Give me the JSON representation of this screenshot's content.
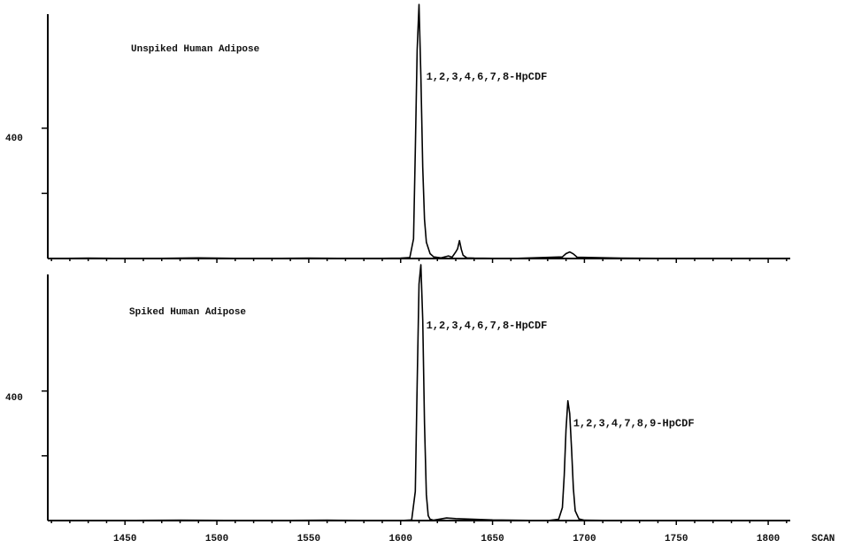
{
  "chart_data": {
    "type": "line",
    "x_label": "SCAN",
    "x_ticks": [
      1450,
      1500,
      1550,
      1600,
      1650,
      1700,
      1750,
      1800
    ],
    "xlim": [
      1408,
      1812
    ],
    "panels": [
      {
        "title": "Unspiked Human Adipose",
        "y_tick_label": "400",
        "ylim": [
          0,
          750
        ],
        "y_ticks": [
          200,
          400
        ],
        "series": [
          {
            "x": [
              1408,
              1430,
              1460,
              1490,
              1520,
              1550,
              1580,
              1600,
              1605,
              1607,
              1608,
              1609,
              1610,
              1611,
              1612,
              1613,
              1614,
              1616,
              1618,
              1622,
              1626,
              1628,
              1630,
              1631,
              1632,
              1633,
              1634,
              1636,
              1640,
              1660,
              1688,
              1690,
              1692,
              1694,
              1696,
              1720,
              1760,
              1812
            ],
            "y": [
              0,
              1,
              0,
              2,
              0,
              1,
              0,
              1,
              3,
              60,
              330,
              640,
              780,
              560,
              280,
              120,
              50,
              15,
              5,
              2,
              8,
              4,
              20,
              30,
              55,
              28,
              10,
              2,
              1,
              0,
              5,
              15,
              20,
              14,
              4,
              1,
              0,
              0
            ]
          }
        ],
        "annotations": [
          {
            "text": "1,2,3,4,6,7,8-HpCDF",
            "x": 1611
          }
        ]
      },
      {
        "title": "Spiked Human Adipose",
        "y_tick_label": "400",
        "ylim": [
          0,
          760
        ],
        "y_ticks": [
          200,
          400
        ],
        "series": [
          {
            "x": [
              1408,
              1440,
              1480,
              1520,
              1560,
              1600,
              1606,
              1608,
              1609,
              1610,
              1611,
              1612,
              1613,
              1614,
              1615,
              1616,
              1618,
              1625,
              1630,
              1650,
              1680,
              1686,
              1688,
              1689,
              1690,
              1691,
              1692,
              1693,
              1694,
              1695,
              1697,
              1700,
              1720,
              1760,
              1812
            ],
            "y": [
              0,
              0,
              1,
              0,
              1,
              0,
              2,
              90,
              420,
              730,
              790,
              620,
              300,
              80,
              15,
              4,
              1,
              8,
              6,
              2,
              0,
              4,
              40,
              140,
              280,
              370,
              330,
              220,
              100,
              30,
              5,
              1,
              0,
              0,
              0
            ]
          }
        ],
        "annotations": [
          {
            "text": "1,2,3,4,6,7,8-HpCDF",
            "x": 1611
          },
          {
            "text": "1,2,3,4,7,8,9-HpCDF",
            "x": 1691
          }
        ]
      }
    ]
  }
}
